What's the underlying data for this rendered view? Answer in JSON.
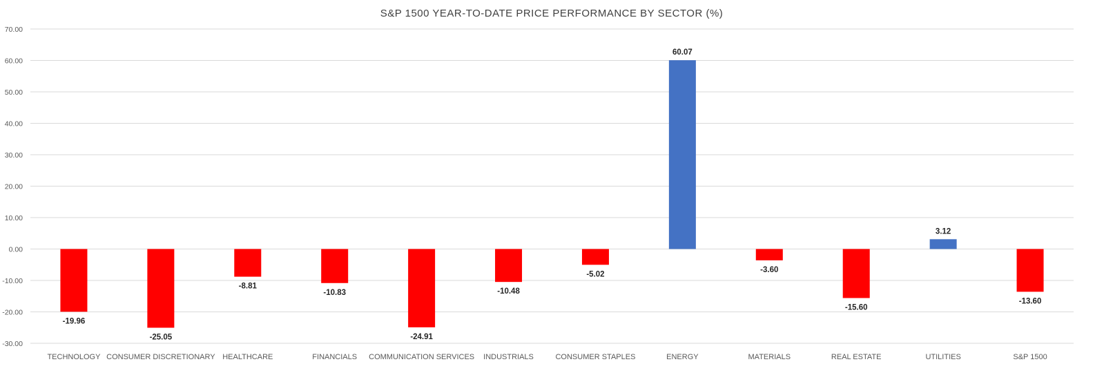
{
  "chart_data": {
    "type": "bar",
    "title": "S&P 1500 YEAR-TO-DATE PRICE PERFORMANCE BY SECTOR (%)",
    "xlabel": "",
    "ylabel": "",
    "ylim": [
      -30,
      70
    ],
    "yticks": [
      70,
      60,
      50,
      40,
      30,
      20,
      10,
      0,
      -10,
      -20,
      -30
    ],
    "ytick_labels": [
      "70.00",
      "60.00",
      "50.00",
      "40.00",
      "30.00",
      "20.00",
      "10.00",
      "0.00",
      "-10.00",
      "-20.00",
      "-30.00"
    ],
    "grid": true,
    "legend": "none",
    "categories": [
      "TECHNOLOGY",
      "CONSUMER DISCRETIONARY",
      "HEALTHCARE",
      "FINANCIALS",
      "COMMUNICATION SERVICES",
      "INDUSTRIALS",
      "CONSUMER STAPLES",
      "ENERGY",
      "MATERIALS",
      "REAL ESTATE",
      "UTILITIES",
      "S&P 1500"
    ],
    "values": [
      -19.96,
      -25.05,
      -8.81,
      -10.83,
      -24.91,
      -10.48,
      -5.02,
      60.07,
      -3.6,
      -15.6,
      3.12,
      -13.6
    ],
    "value_labels": [
      "-19.96",
      "-25.05",
      "-8.81",
      "-10.83",
      "-24.91",
      "-10.48",
      "-5.02",
      "60.07",
      "-3.60",
      "-15.60",
      "3.12",
      "-13.60"
    ],
    "colors": {
      "positive": "#4472c4",
      "negative": "#ff0000",
      "grid": "#d9d9d9"
    }
  }
}
